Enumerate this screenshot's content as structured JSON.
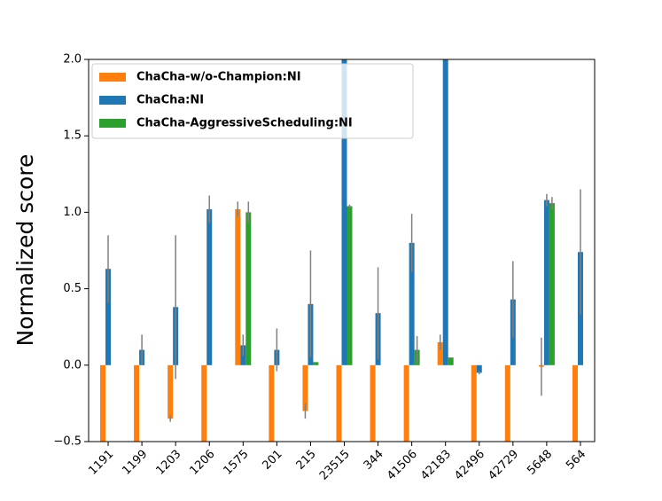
{
  "chart_data": {
    "type": "bar",
    "y_label": "Normalized score",
    "categories": [
      "1191",
      "1199",
      "1203",
      "1206",
      "1575",
      "201",
      "215",
      "23515",
      "344",
      "41506",
      "42183",
      "42496",
      "42729",
      "5648",
      "564"
    ],
    "series": [
      {
        "name": "ChaCha-w/o-Champion:NI",
        "color": "#ff7f0e",
        "values": [
          -0.5,
          -0.5,
          -0.35,
          -0.5,
          1.02,
          -0.5,
          -0.3,
          -0.5,
          -0.5,
          -0.5,
          0.15,
          -0.5,
          -0.5,
          -0.01,
          -0.5
        ],
        "errors": [
          0,
          0,
          0.02,
          0,
          0.05,
          0,
          0.05,
          0,
          0,
          0,
          0.05,
          0,
          0,
          0.19,
          0
        ]
      },
      {
        "name": "ChaCha:NI",
        "color": "#1f77b4",
        "values": [
          0.63,
          0.1,
          0.38,
          1.02,
          0.13,
          0.1,
          0.4,
          2.0,
          0.34,
          0.8,
          2.0,
          -0.05,
          0.43,
          1.08,
          0.74
        ],
        "errors": [
          0.22,
          0.1,
          0.47,
          0.09,
          0.07,
          0.14,
          0.35,
          0,
          0.3,
          0.19,
          0,
          0.01,
          0.25,
          0.04,
          0.41
        ]
      },
      {
        "name": "ChaCha-AggressiveScheduling:NI",
        "color": "#2ca02c",
        "values": [
          0,
          0,
          0,
          0,
          1.0,
          0,
          0.02,
          1.04,
          0,
          0.1,
          0.05,
          0,
          0,
          1.06,
          0
        ],
        "errors": [
          0,
          0,
          0,
          0,
          0.07,
          0,
          0,
          0.01,
          0,
          0.09,
          0,
          0,
          0,
          0.04,
          0
        ]
      }
    ],
    "error_color": "#808080",
    "ylim": [
      -0.5,
      2.0
    ],
    "yticks": [
      {
        "value": -0.5,
        "label": "−0.5"
      },
      {
        "value": 0,
        "label": "0.0"
      },
      0.5,
      {
        "value": 1.0,
        "label": "1.0"
      },
      1.5,
      {
        "value": 2.0,
        "label": "2.0"
      }
    ],
    "legend": "upper left"
  }
}
